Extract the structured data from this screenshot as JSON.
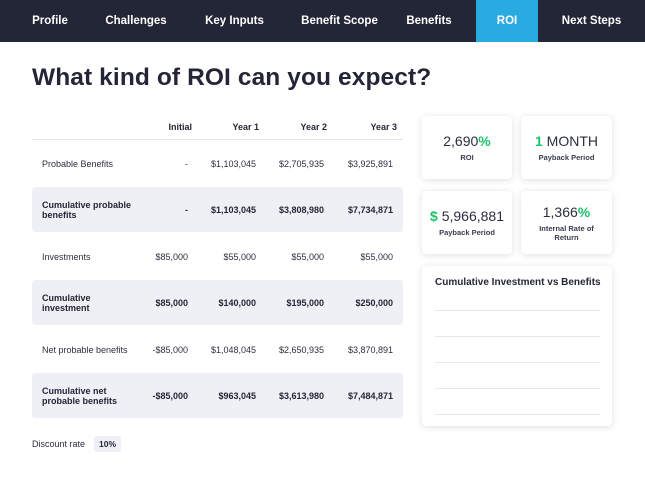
{
  "nav": {
    "tabs": [
      {
        "label": "Profile",
        "active": false
      },
      {
        "label": "Challenges",
        "active": false
      },
      {
        "label": "Key Inputs",
        "active": false
      },
      {
        "label": "Benefit Scope",
        "active": false
      },
      {
        "label": "Benefits",
        "active": false
      },
      {
        "label": "ROI",
        "active": true
      },
      {
        "label": "Next Steps",
        "active": false
      }
    ]
  },
  "page": {
    "title": "What kind of ROI can you expect?"
  },
  "table": {
    "columns": [
      "Initial",
      "Year 1",
      "Year 2",
      "Year 3"
    ],
    "rows": [
      {
        "label": "Probable Benefits",
        "initial": "-",
        "y1": "$1,103,045",
        "y2": "$2,705,935",
        "y3": "$3,925,891",
        "shaded": false
      },
      {
        "label": "Cumulative probable benefits",
        "initial": "-",
        "y1": "$1,103,045",
        "y2": "$3,808,980",
        "y3": "$7,734,871",
        "shaded": true
      },
      {
        "label": "Investments",
        "initial": "$85,000",
        "y1": "$55,000",
        "y2": "$55,000",
        "y3": "$55,000",
        "shaded": false
      },
      {
        "label": "Cumulative investment",
        "initial": "$85,000",
        "y1": "$140,000",
        "y2": "$195,000",
        "y3": "$250,000",
        "shaded": true
      },
      {
        "label": "Net probable benefits",
        "initial": "-$85,000",
        "y1": "$1,048,045",
        "y2": "$2,650,935",
        "y3": "$3,870,891",
        "shaded": false
      },
      {
        "label": "Cumulative net probable benefits",
        "initial": "-$85,000",
        "y1": "$963,045",
        "y2": "$3,613,980",
        "y3": "$7,484,871",
        "shaded": true
      }
    ]
  },
  "discount": {
    "label": "Discount rate",
    "value": "10%"
  },
  "metrics": {
    "roi": {
      "number": "2,690",
      "suffix": "%",
      "label": "ROI"
    },
    "payback_months": {
      "number": "1",
      "unit": " MONTH",
      "label": "Payback Period"
    },
    "payback_value": {
      "prefix": "$",
      "number": " 5,966,881",
      "label": "Payback Period"
    },
    "irr": {
      "number": "1,366",
      "suffix": "%",
      "label": "Internal Rate of Return"
    }
  },
  "chart": {
    "title": "Cumulative Investment vs Benefits"
  },
  "colors": {
    "nav_bg": "#232637",
    "active_tab": "#29abe2",
    "highlight_green": "#1ec26a",
    "row_shade": "#eff0f5"
  }
}
